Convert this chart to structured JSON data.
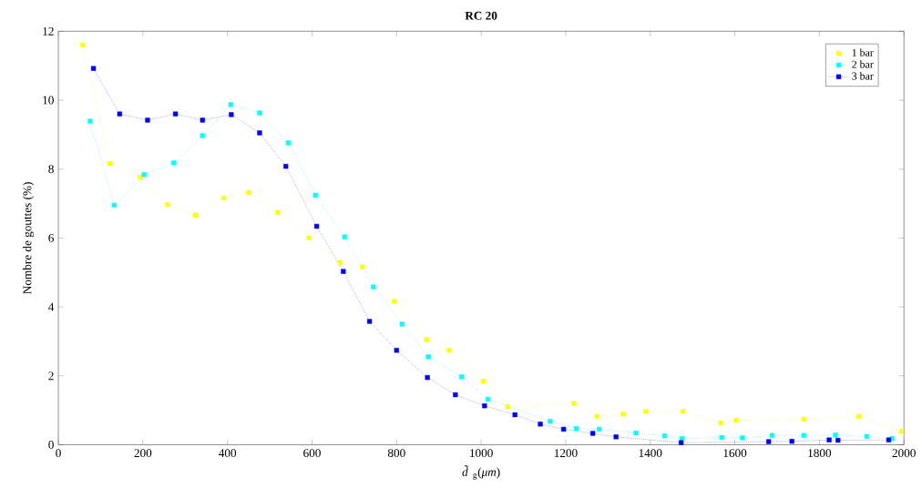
{
  "chart_data": {
    "type": "line",
    "title": "RC 20",
    "xlabel": "*d̃*$_{g}$(*μm*)",
    "ylabel": "Nombre de gouttes (%)",
    "xlim": [
      0,
      2000
    ],
    "xticks": [
      0,
      200,
      400,
      600,
      800,
      1000,
      1200,
      1400,
      1600,
      1800,
      2000
    ],
    "ylim": [
      0,
      12
    ],
    "yticks": [
      0,
      2,
      4,
      6,
      8,
      10,
      12
    ],
    "grid": false,
    "legend": "top right",
    "marker": "square",
    "line_style": "dotted",
    "series": [
      {
        "name": "1 bar",
        "color": "#ffff00",
        "x": [
          58,
          122,
          194,
          258,
          324,
          391,
          450,
          519,
          593,
          666,
          719,
          794,
          871,
          924,
          1005,
          1063,
          1219,
          1274,
          1336,
          1390,
          1477,
          1567,
          1603,
          1763,
          1893,
          1994
        ],
        "values": [
          11.6,
          8.16,
          7.76,
          6.97,
          6.66,
          7.16,
          7.32,
          6.74,
          6.0,
          5.29,
          5.16,
          4.16,
          3.05,
          2.74,
          1.84,
          1.1,
          1.2,
          0.82,
          0.89,
          0.97,
          0.97,
          0.63,
          0.71,
          0.74,
          0.82,
          0.39
        ]
      },
      {
        "name": "2 bar",
        "color": "#00ffff",
        "x": [
          75,
          132,
          203,
          273,
          341,
          408,
          476,
          544,
          608,
          677,
          745,
          813,
          875,
          954,
          1016,
          1163,
          1225,
          1279,
          1366,
          1434,
          1475,
          1569,
          1618,
          1688,
          1763,
          1838,
          1912,
          1972
        ],
        "values": [
          9.39,
          6.95,
          7.84,
          8.18,
          8.97,
          9.87,
          9.63,
          8.76,
          7.24,
          6.03,
          4.58,
          3.5,
          2.55,
          1.97,
          1.32,
          0.68,
          0.47,
          0.45,
          0.34,
          0.26,
          0.18,
          0.21,
          0.2,
          0.27,
          0.27,
          0.28,
          0.24,
          0.18
        ]
      },
      {
        "name": "3 bar",
        "color": "#0000ff",
        "x": [
          83,
          145,
          211,
          277,
          341,
          409,
          476,
          538,
          611,
          674,
          736,
          800,
          873,
          939,
          1008,
          1080,
          1140,
          1195,
          1264,
          1319,
          1473,
          1680,
          1735,
          1823,
          1844,
          1964
        ],
        "values": [
          10.92,
          9.6,
          9.42,
          9.6,
          9.42,
          9.58,
          9.05,
          8.08,
          6.34,
          5.03,
          3.58,
          2.74,
          1.95,
          1.45,
          1.13,
          0.87,
          0.6,
          0.45,
          0.33,
          0.23,
          0.06,
          0.09,
          0.1,
          0.14,
          0.13,
          0.14
        ]
      }
    ]
  }
}
